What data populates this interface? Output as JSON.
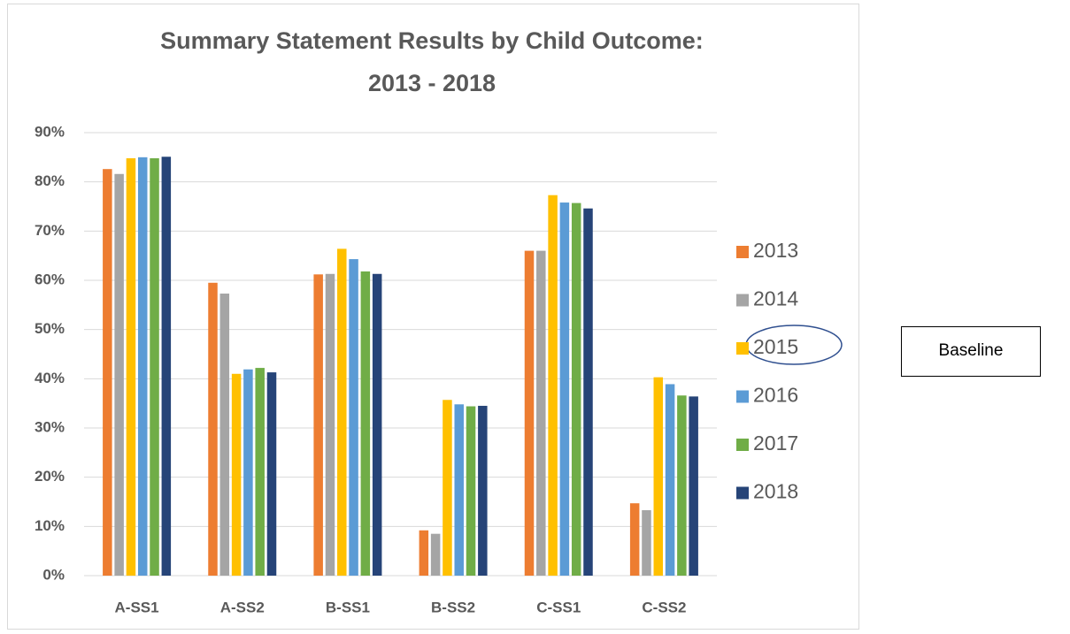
{
  "chart_data": {
    "type": "bar",
    "title": [
      "Summary Statement Results by Child Outcome:",
      "2013 - 2018"
    ],
    "categories": [
      "A-SS1",
      "A-SS2",
      "B-SS1",
      "B-SS2",
      "C-SS1",
      "C-SS2"
    ],
    "series": [
      {
        "name": "2013",
        "color": "#ED7D31",
        "values": [
          82.6,
          59.5,
          61.2,
          9.2,
          66.0,
          14.7
        ]
      },
      {
        "name": "2014",
        "color": "#A5A5A5",
        "values": [
          81.6,
          57.3,
          61.3,
          8.5,
          66.0,
          13.3
        ]
      },
      {
        "name": "2015",
        "color": "#FFC000",
        "values": [
          84.8,
          41.0,
          66.4,
          35.7,
          77.3,
          40.3
        ]
      },
      {
        "name": "2016",
        "color": "#5B9BD5",
        "values": [
          85.0,
          41.9,
          64.3,
          34.8,
          75.8,
          38.9
        ]
      },
      {
        "name": "2017",
        "color": "#70AD47",
        "values": [
          84.8,
          42.2,
          61.8,
          34.4,
          75.7,
          36.6
        ]
      },
      {
        "name": "2018",
        "color": "#264478",
        "values": [
          85.1,
          41.3,
          61.3,
          34.5,
          74.6,
          36.4
        ]
      }
    ],
    "ylim": [
      0,
      90
    ],
    "yticks": [
      {
        "value": 0,
        "label": "0%"
      },
      {
        "value": 10,
        "label": "10%"
      },
      {
        "value": 20,
        "label": "20%"
      },
      {
        "value": 30,
        "label": "30%"
      },
      {
        "value": 40,
        "label": "40%"
      },
      {
        "value": 50,
        "label": "50%"
      },
      {
        "value": 60,
        "label": "60%"
      },
      {
        "value": 70,
        "label": "70%"
      },
      {
        "value": 80,
        "label": "80%"
      },
      {
        "value": 90,
        "label": "90%"
      }
    ],
    "grid": true,
    "legend": "right",
    "annotation": "Baseline"
  }
}
